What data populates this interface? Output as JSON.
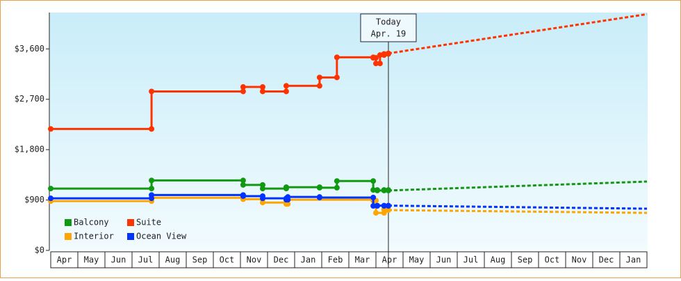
{
  "chart_data": {
    "type": "step-line",
    "xlim": [
      0,
      22
    ],
    "xticks": [
      {
        "value": 0.5,
        "label": "Apr"
      },
      {
        "value": 1.5,
        "label": "May"
      },
      {
        "value": 2.5,
        "label": "Jun"
      },
      {
        "value": 3.5,
        "label": "Jul"
      },
      {
        "value": 4.5,
        "label": "Aug"
      },
      {
        "value": 5.5,
        "label": "Sep"
      },
      {
        "value": 6.5,
        "label": "Oct"
      },
      {
        "value": 7.5,
        "label": "Nov"
      },
      {
        "value": 8.5,
        "label": "Dec"
      },
      {
        "value": 9.5,
        "label": "Jan"
      },
      {
        "value": 10.5,
        "label": "Feb"
      },
      {
        "value": 11.5,
        "label": "Mar"
      },
      {
        "value": 12.5,
        "label": "Apr"
      },
      {
        "value": 13.5,
        "label": "May"
      },
      {
        "value": 14.5,
        "label": "Jun"
      },
      {
        "value": 15.5,
        "label": "Jul"
      },
      {
        "value": 16.5,
        "label": "Aug"
      },
      {
        "value": 17.5,
        "label": "Sep"
      },
      {
        "value": 18.5,
        "label": "Oct"
      },
      {
        "value": 19.5,
        "label": "Nov"
      },
      {
        "value": 20.5,
        "label": "Dec"
      },
      {
        "value": 21.5,
        "label": "Jan"
      }
    ],
    "ylim": [
      0,
      4250
    ],
    "yticks": [
      {
        "value": 0,
        "label": "$0"
      },
      {
        "value": 900,
        "label": "$900"
      },
      {
        "value": 1800,
        "label": "$1,800"
      },
      {
        "value": 2700,
        "label": "$2,700"
      },
      {
        "value": 3600,
        "label": "$3,600"
      }
    ],
    "annotation": {
      "x": 12.46,
      "lines": [
        "Today",
        "Apr. 19"
      ]
    },
    "legend": "bottom-left",
    "series": [
      {
        "name": "Balcony",
        "color": "#119911",
        "x": [
          0,
          3.72,
          7.1,
          7.82,
          8.69,
          9.92,
          10.56,
          11.9,
          12.05,
          12.3,
          12.46
        ],
        "values": [
          1105,
          1250,
          1170,
          1105,
          1130,
          1120,
          1240,
          1080,
          1070,
          1080,
          1070
        ],
        "projection": {
          "x": [
            12.46,
            22
          ],
          "values": [
            1070,
            1230
          ]
        }
      },
      {
        "name": "Suite",
        "color": "#ff3300",
        "x": [
          0,
          3.72,
          7.1,
          7.82,
          8.69,
          9.92,
          10.56,
          11.9,
          12.0,
          12.15,
          12.3,
          12.46
        ],
        "values": [
          2170,
          2840,
          2920,
          2840,
          2940,
          3090,
          3450,
          3440,
          3340,
          3490,
          3510,
          3520
        ],
        "projection": {
          "x": [
            12.46,
            22
          ],
          "values": [
            3520,
            4220
          ]
        }
      },
      {
        "name": "Interior",
        "color": "#ffa500",
        "x": [
          0,
          3.72,
          7.1,
          7.82,
          8.69,
          8.75,
          11.9,
          12.0,
          12.3,
          12.46
        ],
        "values": [
          880,
          940,
          915,
          855,
          830,
          905,
          890,
          670,
          730,
          720
        ],
        "projection": {
          "x": [
            12.46,
            22
          ],
          "values": [
            720,
            670
          ]
        }
      },
      {
        "name": "Ocean View",
        "color": "#0033ff",
        "x": [
          0,
          3.72,
          7.1,
          7.82,
          8.69,
          8.75,
          9.92,
          11.9,
          12.05,
          12.3,
          12.46
        ],
        "values": [
          930,
          990,
          970,
          930,
          905,
          955,
          945,
          795,
          800,
          795,
          800
        ],
        "projection": {
          "x": [
            12.46,
            22
          ],
          "values": [
            800,
            745
          ]
        }
      }
    ]
  }
}
